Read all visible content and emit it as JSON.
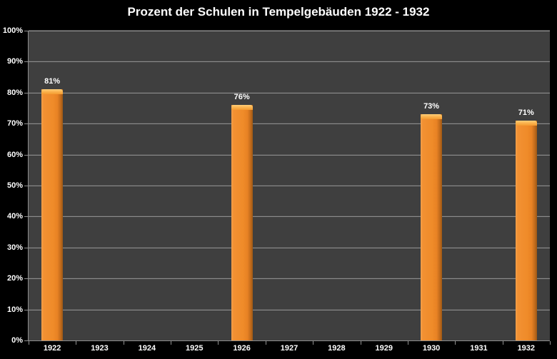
{
  "chart_data": {
    "type": "bar",
    "title": "Prozent der Schulen in Tempelgebäuden 1922 - 1932",
    "categories": [
      "1922",
      "1923",
      "1924",
      "1925",
      "1926",
      "1927",
      "1928",
      "1929",
      "1930",
      "1931",
      "1932"
    ],
    "values": [
      81,
      null,
      null,
      null,
      76,
      null,
      null,
      null,
      73,
      null,
      71
    ],
    "value_labels": [
      "81%",
      "",
      "",
      "",
      "76%",
      "",
      "",
      "",
      "73%",
      "",
      "71%"
    ],
    "xlabel": "",
    "ylabel": "",
    "ylim": [
      0,
      100
    ],
    "ytick_step": 10,
    "ytick_labels": [
      "0%",
      "10%",
      "20%",
      "30%",
      "40%",
      "50%",
      "60%",
      "70%",
      "80%",
      "90%",
      "100%"
    ],
    "grid": true,
    "legend": "none"
  },
  "colors": {
    "background": "#000000",
    "plot_background": "#3F3F3F",
    "gridline_dark": "#4C4C4C",
    "gridline_light": "#8C8C8C",
    "axis": "#8F8F8F",
    "text": "#FFFFFF",
    "bar_main": "#EF8B29",
    "bar_edge_dark": "#9C5815",
    "bar_cap_light": "#FFD07A"
  }
}
